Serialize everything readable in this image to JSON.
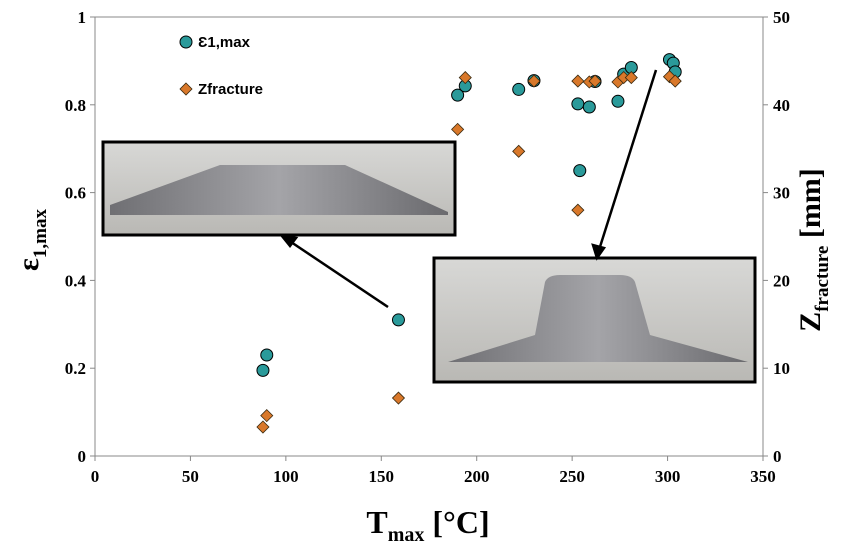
{
  "chart_data": {
    "type": "scatter",
    "x_label": {
      "main": "T",
      "sub": "max",
      "rest": " [°C]"
    },
    "y_label": {
      "main": "ε",
      "sub": "1,max"
    },
    "y2_label": {
      "main": "Z",
      "sub": "fracture",
      "rest": " [mm]"
    },
    "xlim": [
      0,
      350
    ],
    "xticks": [
      0,
      50,
      100,
      150,
      200,
      250,
      300,
      350
    ],
    "ylim": [
      0,
      1
    ],
    "yticks": [
      0,
      0.2,
      0.4,
      0.6,
      0.8,
      1
    ],
    "y2lim": [
      0,
      50
    ],
    "y2ticks": [
      0,
      10,
      20,
      30,
      40,
      50
    ],
    "series": [
      {
        "name": "Ɛ1,max",
        "color": "#2a9a9a",
        "marker": "circle",
        "x": [
          88,
          90,
          159,
          190,
          194,
          222,
          230,
          253,
          254,
          259,
          262,
          274,
          277,
          281,
          301,
          303,
          304
        ],
        "values": [
          0.195,
          0.23,
          0.31,
          0.822,
          0.843,
          0.835,
          0.855,
          0.802,
          0.65,
          0.795,
          0.853,
          0.808,
          0.87,
          0.885,
          0.903,
          0.895,
          0.875
        ]
      },
      {
        "name": "Zfracture",
        "color": "#d9782a",
        "marker": "diamond",
        "axis": "y2",
        "x": [
          88,
          90,
          159,
          190,
          194,
          222,
          230,
          253,
          253,
          259,
          262,
          274,
          277,
          281,
          301,
          304
        ],
        "values": [
          3.3,
          4.6,
          6.6,
          37.2,
          43.1,
          34.7,
          42.7,
          28.0,
          42.7,
          42.6,
          42.7,
          42.6,
          43.1,
          43.1,
          43.2,
          42.7
        ]
      }
    ]
  }
}
